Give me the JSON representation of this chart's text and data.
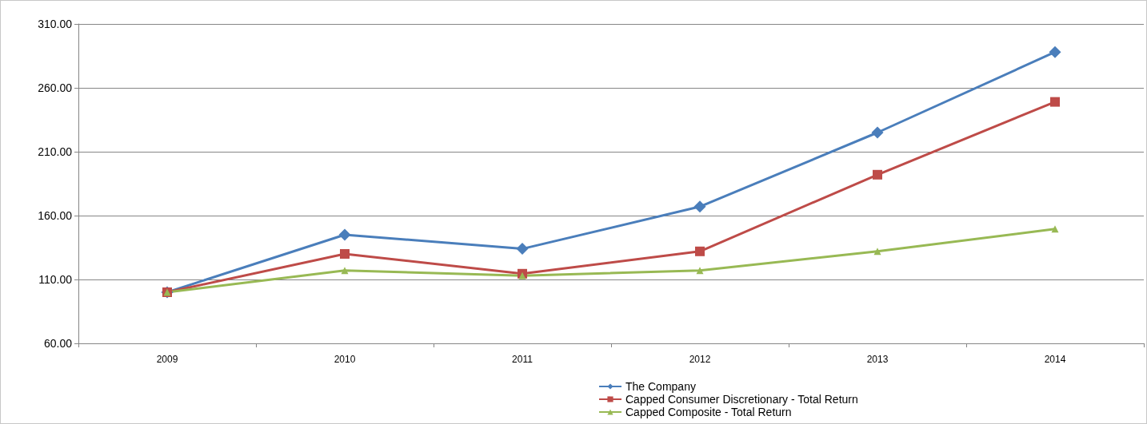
{
  "chart_data": {
    "type": "line",
    "categories": [
      "2009",
      "2010",
      "2011",
      "2012",
      "2013",
      "2014"
    ],
    "series": [
      {
        "name": "The Company",
        "color": "#4a7ebb",
        "marker": "diamond",
        "values": [
          100,
          145,
          134,
          167,
          225,
          288
        ]
      },
      {
        "name": "Capped Consumer Discretionary - Total Return",
        "color": "#be4b48",
        "marker": "square",
        "values": [
          100,
          130,
          114.5,
          132,
          192,
          249
        ]
      },
      {
        "name": "Capped Composite - Total Return",
        "color": "#98b954",
        "marker": "triangle",
        "values": [
          100,
          117,
          113,
          117,
          132,
          149.5
        ]
      }
    ],
    "ylim": [
      60,
      310
    ],
    "yticks": [
      {
        "value": 60,
        "label": "60.00"
      },
      {
        "value": 110,
        "label": "110.00"
      },
      {
        "value": 160,
        "label": "160.00"
      },
      {
        "value": 210,
        "label": "210.00"
      },
      {
        "value": 260,
        "label": "260.00"
      },
      {
        "value": 310,
        "label": "310.00"
      }
    ],
    "grid": "y",
    "legend": "bottom",
    "line_style": "solid"
  }
}
